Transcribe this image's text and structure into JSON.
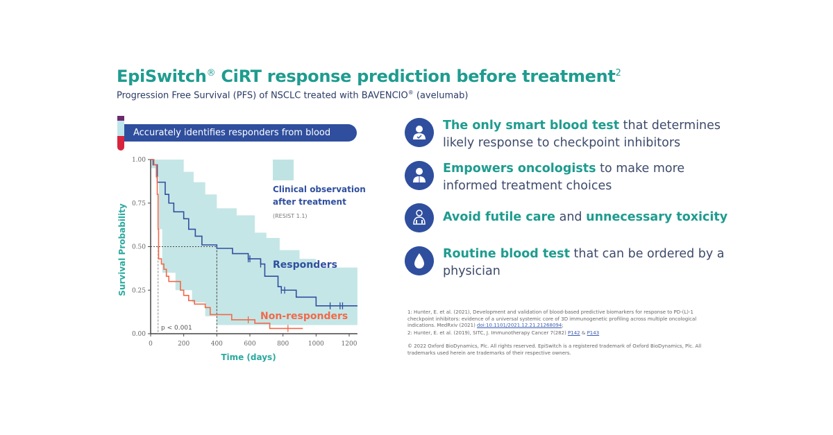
{
  "header": {
    "title": "EpiSwitch",
    "title_reg": "®",
    "title_rest": " CiRT response prediction before treatment",
    "title_sup": "2",
    "subtitle": "Progression Free Survival (PFS) of NSCLC treated with BAVENCIO",
    "subtitle_reg": "®",
    "subtitle_rest": " (avelumab)"
  },
  "banner": {
    "label": "Accurately identifies responders from blood",
    "icon": "blood-tube-icon"
  },
  "chart_data": {
    "type": "line",
    "xlabel": "Time (days)",
    "ylabel": "Survival Probability",
    "xlim": [
      0,
      1250
    ],
    "ylim": [
      0,
      1
    ],
    "x_ticks": [
      "0",
      "200",
      "400",
      "600",
      "800",
      "1000",
      "1200"
    ],
    "y_ticks": [
      "0.00",
      "0.25",
      "0.50",
      "0.75",
      "1.00"
    ],
    "annotation_p": "p < 0.001",
    "legend": {
      "band_label": "Clinical observation after treatment",
      "band_line1": "Clinical observation",
      "band_line2": "after treatment",
      "band_note": "(RESIST 1.1)"
    },
    "median_lines": {
      "responders_day": 400,
      "nonresponders_day": 45,
      "survival": 0.5
    },
    "series": [
      {
        "name": "Responders",
        "color": "#2f4f9e",
        "steps": [
          [
            0,
            1
          ],
          [
            15,
            0.97
          ],
          [
            40,
            0.87
          ],
          [
            88,
            0.8
          ],
          [
            110,
            0.75
          ],
          [
            140,
            0.7
          ],
          [
            200,
            0.66
          ],
          [
            230,
            0.6
          ],
          [
            270,
            0.56
          ],
          [
            310,
            0.51
          ],
          [
            400,
            0.49
          ],
          [
            495,
            0.46
          ],
          [
            590,
            0.43
          ],
          [
            665,
            0.4
          ],
          [
            690,
            0.33
          ],
          [
            770,
            0.27
          ],
          [
            790,
            0.25
          ],
          [
            880,
            0.21
          ],
          [
            1000,
            0.16
          ],
          [
            1250,
            0.16
          ]
        ],
        "censored": [
          590,
          600,
          665,
          790,
          810,
          1085,
          1145,
          1160
        ]
      },
      {
        "name": "Non-responders",
        "color": "#f0694a",
        "steps": [
          [
            0,
            1
          ],
          [
            20,
            0.97
          ],
          [
            35,
            0.9
          ],
          [
            40,
            0.8
          ],
          [
            45,
            0.6
          ],
          [
            48,
            0.43
          ],
          [
            65,
            0.4
          ],
          [
            80,
            0.37
          ],
          [
            95,
            0.33
          ],
          [
            110,
            0.3
          ],
          [
            180,
            0.25
          ],
          [
            200,
            0.22
          ],
          [
            230,
            0.19
          ],
          [
            265,
            0.17
          ],
          [
            330,
            0.15
          ],
          [
            360,
            0.11
          ],
          [
            490,
            0.08
          ],
          [
            630,
            0.06
          ],
          [
            720,
            0.03
          ],
          [
            920,
            0.03
          ]
        ],
        "censored": [
          590,
          830
        ]
      }
    ],
    "band": {
      "color": "#bfe3e3",
      "upper": [
        [
          0,
          1
        ],
        [
          150,
          1
        ],
        [
          200,
          0.93
        ],
        [
          260,
          0.87
        ],
        [
          330,
          0.8
        ],
        [
          400,
          0.72
        ],
        [
          520,
          0.68
        ],
        [
          630,
          0.58
        ],
        [
          700,
          0.55
        ],
        [
          780,
          0.48
        ],
        [
          900,
          0.43
        ],
        [
          1000,
          0.38
        ],
        [
          1250,
          0.35
        ]
      ],
      "lower": [
        [
          0,
          0.95
        ],
        [
          30,
          0.9
        ],
        [
          50,
          0.6
        ],
        [
          70,
          0.35
        ],
        [
          150,
          0.25
        ],
        [
          250,
          0.18
        ],
        [
          330,
          0.1
        ],
        [
          400,
          0.05
        ],
        [
          1250,
          0.04
        ]
      ]
    }
  },
  "features": [
    {
      "icon": "patient-check-icon",
      "highlight": "The only smart blood test",
      "text": " that determines likely response to checkpoint inhibitors"
    },
    {
      "icon": "oncologist-icon",
      "highlight": "Empowers oncologists",
      "text": " to make more informed treatment choices"
    },
    {
      "icon": "lungs-person-icon",
      "highlight": "Avoid futile care",
      "text": " and ",
      "highlight2": "unnecessary toxicity"
    },
    {
      "icon": "blood-drop-icon",
      "highlight": "Routine blood test",
      "text": " that can be ordered by a physician"
    }
  ],
  "references": {
    "ref1": "1: Hunter, E. et al. (2021), Development and validation of blood-based predictive biomarkers for response to PD-(L)-1 checkpoint inhibitors: evidence of a universal systemic core of 3D immunogenetic profiling across multiple oncological indications. MedRxiv (2021) ",
    "ref1_link": "doi:10.1101/2021.12.21.21268094",
    "ref1_end": ";",
    "ref2": "2: Hunter, E. et al. (2019), SITC, J. Immunotherapy Cancer 7(282) ",
    "ref2_link1": "P142",
    "ref2_amp": " & ",
    "ref2_link2": "P143",
    "copyright": "© 2022 Oxford BioDynamics, Plc. All rights reserved. EpiSwitch is a registered trademark of Oxford BioDynamics, Plc. All trademarks used herein are trademarks of their respective owners."
  }
}
